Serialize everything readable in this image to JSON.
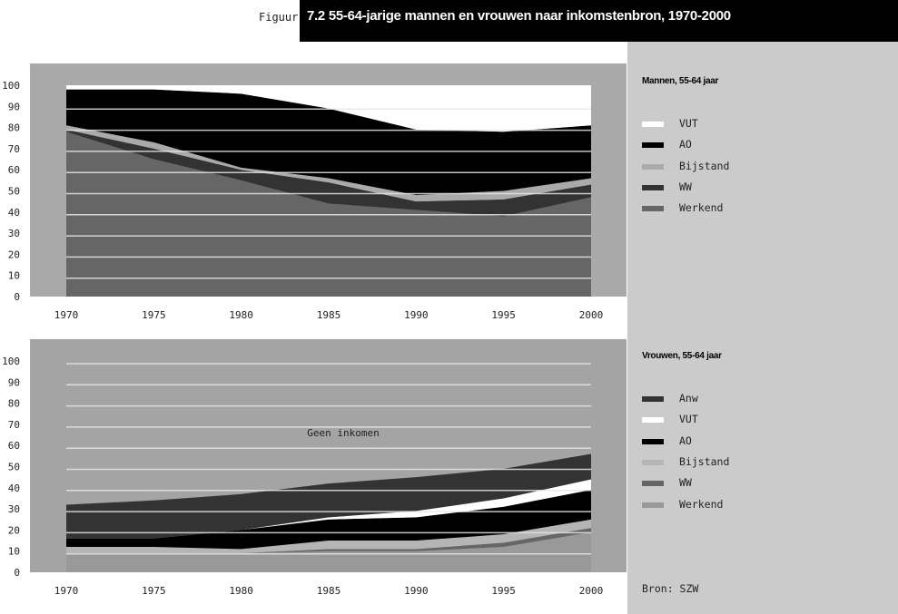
{
  "header": {
    "prefix": "Figuur",
    "title": "7.2   55-64-jarige mannen en vrouwen naar inkomstenbron, 1970-2000"
  },
  "source": "Bron: SZW",
  "chart_data": [
    {
      "type": "area",
      "stacked": true,
      "title": "Mannen, 55-64 jaar",
      "x": [
        1970,
        1975,
        1980,
        1985,
        1990,
        1995,
        2000
      ],
      "ylim": [
        0,
        100
      ],
      "yticks": [
        0,
        10,
        20,
        30,
        40,
        50,
        60,
        70,
        80,
        90,
        100
      ],
      "grid": true,
      "legend_position": "right",
      "series": [
        {
          "name": "Werkend",
          "color": "#666666",
          "values": [
            78,
            65,
            55,
            44,
            41,
            38,
            47
          ]
        },
        {
          "name": "WW",
          "color": "#333333",
          "values": [
            1,
            5,
            5,
            10,
            4,
            8,
            6
          ]
        },
        {
          "name": "Bijstand",
          "color": "#aaaaaa",
          "values": [
            2,
            3,
            1,
            2,
            3,
            4,
            3
          ]
        },
        {
          "name": "AO",
          "color": "#000000",
          "values": [
            17,
            25,
            35,
            33,
            31,
            28,
            25
          ]
        },
        {
          "name": "VUT",
          "color": "#ffffff",
          "values": [
            2,
            2,
            4,
            11,
            21,
            22,
            19
          ]
        }
      ],
      "legend_order": [
        "VUT",
        "AO",
        "Bijstand",
        "WW",
        "Werkend"
      ]
    },
    {
      "type": "area",
      "stacked": true,
      "title": "Vrouwen, 55-64 jaar",
      "x": [
        1970,
        1975,
        1980,
        1985,
        1990,
        1995,
        2000
      ],
      "ylim": [
        0,
        100
      ],
      "yticks": [
        0,
        10,
        20,
        30,
        40,
        50,
        60,
        70,
        80,
        90,
        100
      ],
      "grid": true,
      "legend_position": "right",
      "annotation": "Geen inkomen",
      "series": [
        {
          "name": "Werkend",
          "color": "#999999",
          "values": [
            9,
            9,
            9,
            10,
            10,
            12,
            19
          ]
        },
        {
          "name": "WW",
          "color": "#666666",
          "values": [
            0,
            0,
            0,
            1,
            1,
            2,
            2
          ]
        },
        {
          "name": "Bijstand",
          "color": "#b5b5b5",
          "values": [
            3,
            3,
            2,
            4,
            4,
            4,
            4
          ]
        },
        {
          "name": "AO",
          "color": "#000000",
          "values": [
            4,
            4,
            9,
            10,
            11,
            13,
            14
          ]
        },
        {
          "name": "VUT",
          "color": "#ffffff",
          "values": [
            0,
            0,
            0,
            1,
            3,
            4,
            5
          ]
        },
        {
          "name": "Anw",
          "color": "#333333",
          "values": [
            16,
            18,
            17,
            16,
            16,
            14,
            12
          ]
        }
      ],
      "legend_order": [
        "Anw",
        "VUT",
        "AO",
        "Bijstand",
        "WW",
        "Werkend"
      ]
    }
  ]
}
